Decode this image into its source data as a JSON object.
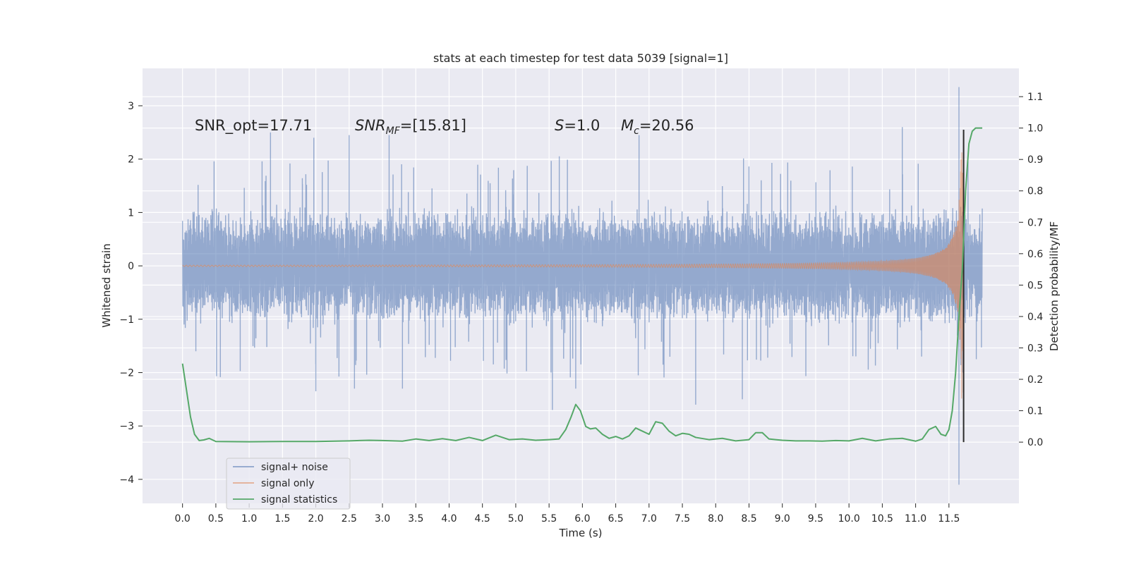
{
  "chart_data": {
    "type": "line",
    "title": "stats at each timestep for test data 5039 [signal=1]",
    "xlabel": "Time (s)",
    "ylabel": "Whitened strain",
    "y2label": "Detection probability/MF",
    "xlim": [
      -0.6,
      12.55
    ],
    "ylim": [
      -4.45,
      3.7
    ],
    "y2lim": [
      -0.195,
      1.19
    ],
    "x_ticks": [
      "0.0",
      "0.5",
      "1.0",
      "1.5",
      "2.0",
      "2.5",
      "3.0",
      "3.5",
      "4.0",
      "4.5",
      "5.0",
      "5.5",
      "6.0",
      "6.5",
      "7.0",
      "7.5",
      "8.0",
      "8.5",
      "9.0",
      "9.5",
      "10.0",
      "10.5",
      "11.0",
      "11.5"
    ],
    "y_ticks": [
      "3",
      "2",
      "1",
      "0",
      "−1",
      "−2",
      "−3",
      "−4"
    ],
    "y2_ticks": [
      "1.1",
      "1.0",
      "0.9",
      "0.8",
      "0.7",
      "0.6",
      "0.5",
      "0.4",
      "0.3",
      "0.2",
      "0.1",
      "0.0"
    ],
    "grid": true,
    "legend_placement": "lower-left",
    "annotations": {
      "snr_opt": "SNR_opt=17.71",
      "snr_mf_name": "SNR",
      "snr_mf_sub": "MF",
      "snr_mf_value": "=[15.81]",
      "s_name": "S",
      "s_value": "=1.0",
      "mc_name": "M",
      "mc_sub": "c",
      "mc_value": "=20.56"
    },
    "series": [
      {
        "name": "signal+ noise",
        "color": "#4c72b0",
        "opacity": 0.5,
        "kind": "noise-band",
        "t_range": [
          0.0,
          12.0
        ],
        "core_amplitude": 0.8,
        "typical_peak_amplitude": 1.4,
        "spikes": [
          {
            "t": 0.2,
            "y": -1.6
          },
          {
            "t": 1.32,
            "y": 2.5
          },
          {
            "t": 1.97,
            "y": 2.4
          },
          {
            "t": 2.0,
            "y": -2.35
          },
          {
            "t": 2.5,
            "y": 2.45
          },
          {
            "t": 2.58,
            "y": -2.3
          },
          {
            "t": 3.1,
            "y": 2.45
          },
          {
            "t": 3.3,
            "y": -2.3
          },
          {
            "t": 5.55,
            "y": -2.7
          },
          {
            "t": 5.9,
            "y": -2.3
          },
          {
            "t": 6.85,
            "y": 2.45
          },
          {
            "t": 7.7,
            "y": -2.6
          },
          {
            "t": 8.4,
            "y": -2.5
          },
          {
            "t": 10.8,
            "y": 2.6
          },
          {
            "t": 11.65,
            "y": 3.35
          },
          {
            "t": 11.65,
            "y": -4.1
          }
        ]
      },
      {
        "name": "signal only",
        "color": "#dd8452",
        "kind": "chirp",
        "t_range": [
          0.0,
          11.72
        ],
        "merger_time": 11.72,
        "peak_amplitude": 2.5
      },
      {
        "name": "signal statistics",
        "color": "#55a868",
        "axis": "right",
        "x": [
          0.0,
          0.12,
          0.18,
          0.25,
          0.32,
          0.4,
          0.5,
          1.0,
          1.5,
          2.0,
          2.5,
          2.8,
          3.0,
          3.3,
          3.5,
          3.7,
          3.9,
          4.1,
          4.3,
          4.5,
          4.7,
          4.9,
          5.1,
          5.3,
          5.5,
          5.65,
          5.75,
          5.83,
          5.9,
          5.97,
          6.05,
          6.12,
          6.2,
          6.3,
          6.4,
          6.5,
          6.6,
          6.7,
          6.8,
          6.9,
          7.0,
          7.1,
          7.2,
          7.3,
          7.4,
          7.5,
          7.6,
          7.7,
          7.9,
          8.1,
          8.3,
          8.5,
          8.6,
          8.7,
          8.8,
          8.9,
          9.0,
          9.2,
          9.4,
          9.6,
          9.8,
          10.0,
          10.2,
          10.4,
          10.6,
          10.8,
          11.0,
          11.1,
          11.2,
          11.3,
          11.38,
          11.45,
          11.5,
          11.55,
          11.6,
          11.65,
          11.7,
          11.75,
          11.8,
          11.85,
          11.9,
          11.95,
          12.0
        ],
        "values": [
          0.25,
          0.08,
          0.025,
          0.005,
          0.007,
          0.012,
          0.002,
          0.001,
          0.002,
          0.002,
          0.004,
          0.006,
          0.005,
          0.003,
          0.01,
          0.005,
          0.011,
          0.005,
          0.015,
          0.005,
          0.022,
          0.008,
          0.01,
          0.006,
          0.008,
          0.01,
          0.04,
          0.08,
          0.12,
          0.1,
          0.05,
          0.042,
          0.045,
          0.025,
          0.012,
          0.018,
          0.01,
          0.02,
          0.045,
          0.035,
          0.025,
          0.065,
          0.06,
          0.035,
          0.02,
          0.028,
          0.025,
          0.015,
          0.008,
          0.012,
          0.004,
          0.008,
          0.03,
          0.03,
          0.01,
          0.008,
          0.006,
          0.004,
          0.004,
          0.003,
          0.005,
          0.004,
          0.012,
          0.004,
          0.01,
          0.012,
          0.003,
          0.01,
          0.04,
          0.05,
          0.025,
          0.02,
          0.04,
          0.1,
          0.22,
          0.4,
          0.55,
          0.8,
          0.95,
          0.99,
          1.0,
          1.0,
          1.0
        ]
      }
    ],
    "vertical_line": {
      "x": 11.72,
      "color": "#2a2a2a"
    }
  }
}
